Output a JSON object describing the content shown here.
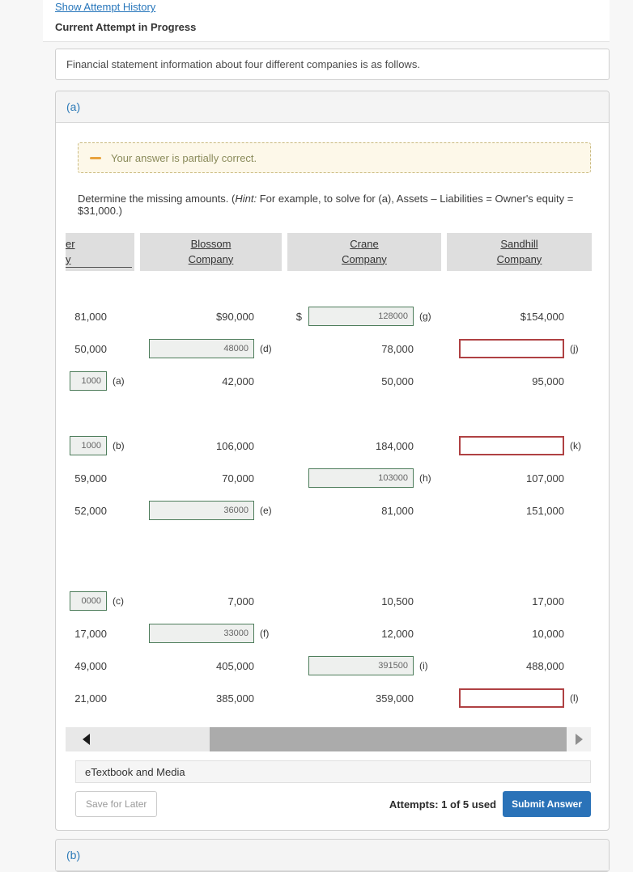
{
  "top": {
    "attempt_history_link": "Show Attempt History",
    "current_attempt": "Current Attempt in Progress"
  },
  "intro": "Financial statement information about four different companies is as follows.",
  "panel_a": {
    "label": "(a)",
    "warning": "Your answer is partially correct.",
    "hint_prefix": "Determine the missing amounts. (",
    "hint_italic": "Hint:",
    "hint_suffix": " For example, to solve for (a), Assets – Liabilities = Owner's equity = $31,000.)",
    "columns": [
      {
        "line1": "er",
        "line2": "y"
      },
      {
        "line1": "Blossom",
        "line2": "Company"
      },
      {
        "line1": "Crane",
        "line2": "Company"
      },
      {
        "line1": "Sandhill",
        "line2": "Company"
      }
    ],
    "rows": [
      {
        "group": 1,
        "cells": [
          {
            "type": "text",
            "value": "81,000"
          },
          {
            "type": "text",
            "value": "$90,000"
          },
          {
            "type": "input",
            "value": "128000",
            "label": "(g)",
            "dollar": "$"
          },
          {
            "type": "text",
            "value": "$154,000"
          }
        ]
      },
      {
        "group": 1,
        "cells": [
          {
            "type": "text",
            "value": "50,000"
          },
          {
            "type": "input",
            "value": "48000",
            "label": "(d)"
          },
          {
            "type": "text",
            "value": "78,000"
          },
          {
            "type": "input-empty",
            "value": "",
            "label": "(j)"
          }
        ]
      },
      {
        "group": 1,
        "cells": [
          {
            "type": "input-cut",
            "value": "1000",
            "label": "(a)"
          },
          {
            "type": "text",
            "value": "42,000"
          },
          {
            "type": "text",
            "value": "50,000"
          },
          {
            "type": "text",
            "value": "95,000"
          }
        ]
      },
      {
        "group": 2,
        "cells": [
          {
            "type": "input-cut",
            "value": "1000",
            "label": "(b)"
          },
          {
            "type": "text",
            "value": "106,000"
          },
          {
            "type": "text",
            "value": "184,000"
          },
          {
            "type": "input-empty",
            "value": "",
            "label": "(k)"
          }
        ]
      },
      {
        "group": 2,
        "cells": [
          {
            "type": "text",
            "value": "59,000"
          },
          {
            "type": "text",
            "value": "70,000"
          },
          {
            "type": "input",
            "value": "103000",
            "label": "(h)"
          },
          {
            "type": "text",
            "value": "107,000"
          }
        ]
      },
      {
        "group": 2,
        "cells": [
          {
            "type": "text",
            "value": "52,000"
          },
          {
            "type": "input",
            "value": "36000",
            "label": "(e)"
          },
          {
            "type": "text",
            "value": "81,000"
          },
          {
            "type": "text",
            "value": "151,000"
          }
        ]
      },
      {
        "group": 3,
        "cells": [
          {
            "type": "input-cut",
            "value": "0000",
            "label": "(c)"
          },
          {
            "type": "text",
            "value": "7,000"
          },
          {
            "type": "text",
            "value": "10,500"
          },
          {
            "type": "text",
            "value": "17,000"
          }
        ]
      },
      {
        "group": 3,
        "cells": [
          {
            "type": "text",
            "value": "17,000"
          },
          {
            "type": "input",
            "value": "33000",
            "label": "(f)"
          },
          {
            "type": "text",
            "value": "12,000"
          },
          {
            "type": "text",
            "value": "10,000"
          }
        ]
      },
      {
        "group": 3,
        "cells": [
          {
            "type": "text",
            "value": "49,000"
          },
          {
            "type": "text",
            "value": "405,000"
          },
          {
            "type": "input",
            "value": "391500",
            "label": "(i)"
          },
          {
            "type": "text",
            "value": "488,000"
          }
        ]
      },
      {
        "group": 3,
        "cells": [
          {
            "type": "text",
            "value": "21,000"
          },
          {
            "type": "text",
            "value": "385,000"
          },
          {
            "type": "text",
            "value": "359,000"
          },
          {
            "type": "input-empty",
            "value": "",
            "label": "(l)"
          }
        ]
      }
    ],
    "footer": {
      "etextbook": "eTextbook and Media",
      "save_for_later": "Save for Later",
      "attempts": "Attempts: 1 of 5 used",
      "submit": "Submit Answer"
    }
  },
  "panel_b": {
    "label": "(b)"
  },
  "colors": {
    "link_blue": "#2776bb",
    "submit_blue": "#2a72b8",
    "answer_correct_border": "#4e7d5b",
    "answer_wrong_border": "#af4143",
    "warning_bg": "#fdf8e9",
    "warning_icon": "#e8a33d"
  }
}
